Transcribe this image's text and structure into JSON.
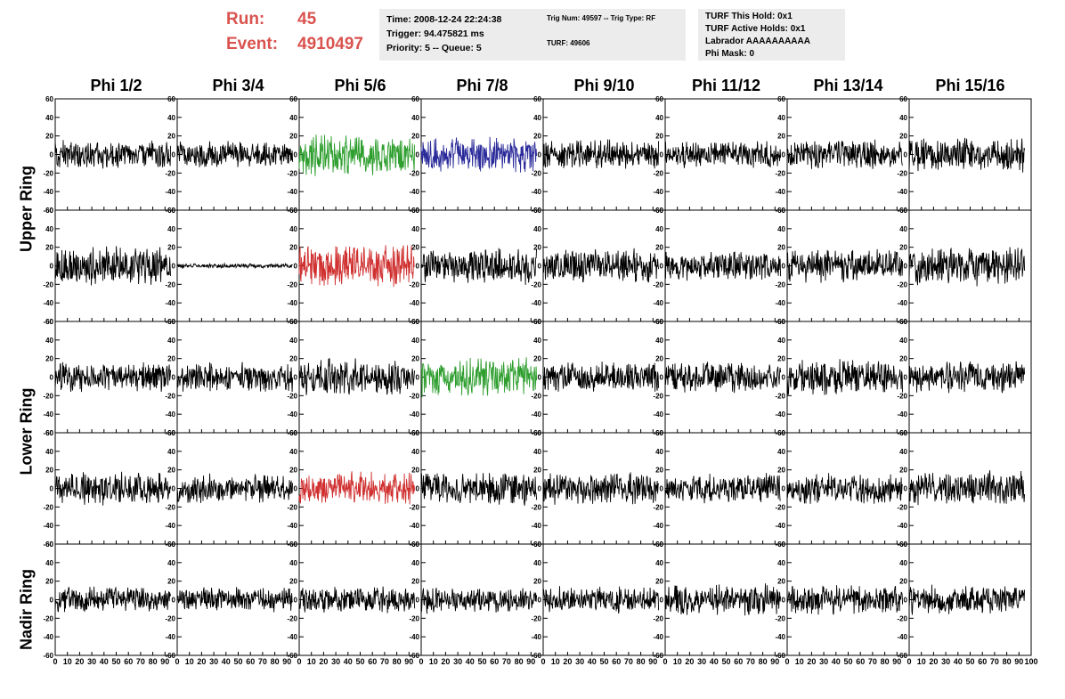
{
  "run": {
    "run_label": "Run:",
    "run_value": "45",
    "event_label": "Event:",
    "event_value": "4910497",
    "color": "#d9534f"
  },
  "time_box": {
    "line1": "Time: 2008-12-24 22:24:38",
    "line2": "Trigger: 94.475821 ms",
    "line3": "Priority: 5 -- Queue: 5"
  },
  "trig_box": {
    "line1": "Trig Num: 49597 -- Trig Type: RF",
    "line2": "TURF: 49606"
  },
  "turf_box": {
    "line1": "TURF This Hold: 0x1",
    "line2": "TURF Active Holds: 0x1",
    "line3": "Labrador AAAAAAAAAA",
    "line4": "Phi Mask: 0"
  },
  "columns": [
    "Phi 1/2",
    "Phi 3/4",
    "Phi 5/6",
    "Phi 7/8",
    "Phi 9/10",
    "Phi 11/12",
    "Phi 13/14",
    "Phi 15/16"
  ],
  "rings": {
    "upper": "Upper Ring",
    "lower": "Lower Ring",
    "nadir": "Nadir Ring"
  },
  "colors": {
    "black": "#000000",
    "green": "#2e9e2e",
    "red": "#d03030",
    "blue": "#2a2a9a"
  },
  "chart_data": {
    "type": "line",
    "xlim": [
      0,
      100
    ],
    "ylim": [
      -60,
      60
    ],
    "xticks": [
      "0",
      "10",
      "20",
      "30",
      "40",
      "50",
      "60",
      "70",
      "80",
      "90",
      "100"
    ],
    "yticks": [
      "60",
      "40",
      "20",
      "0",
      "-20",
      "-40",
      "-60"
    ],
    "panel_amplitudes": [
      [
        12,
        11,
        18,
        14,
        12,
        12,
        12,
        14
      ],
      [
        16,
        2,
        18,
        15,
        14,
        12,
        14,
        16
      ],
      [
        12,
        12,
        15,
        16,
        13,
        13,
        15,
        13
      ],
      [
        14,
        12,
        14,
        14,
        13,
        12,
        13,
        14
      ],
      [
        11,
        10,
        11,
        11,
        11,
        13,
        12,
        12
      ]
    ],
    "panel_colors": [
      [
        "black",
        "black",
        "green",
        "blue",
        "black",
        "black",
        "black",
        "black"
      ],
      [
        "black",
        "black",
        "red",
        "black",
        "black",
        "black",
        "black",
        "black"
      ],
      [
        "black",
        "black",
        "black",
        "green",
        "black",
        "black",
        "black",
        "black"
      ],
      [
        "black",
        "black",
        "red",
        "black",
        "black",
        "black",
        "black",
        "black"
      ],
      [
        "black",
        "black",
        "black",
        "black",
        "black",
        "black",
        "black",
        "black"
      ]
    ]
  }
}
